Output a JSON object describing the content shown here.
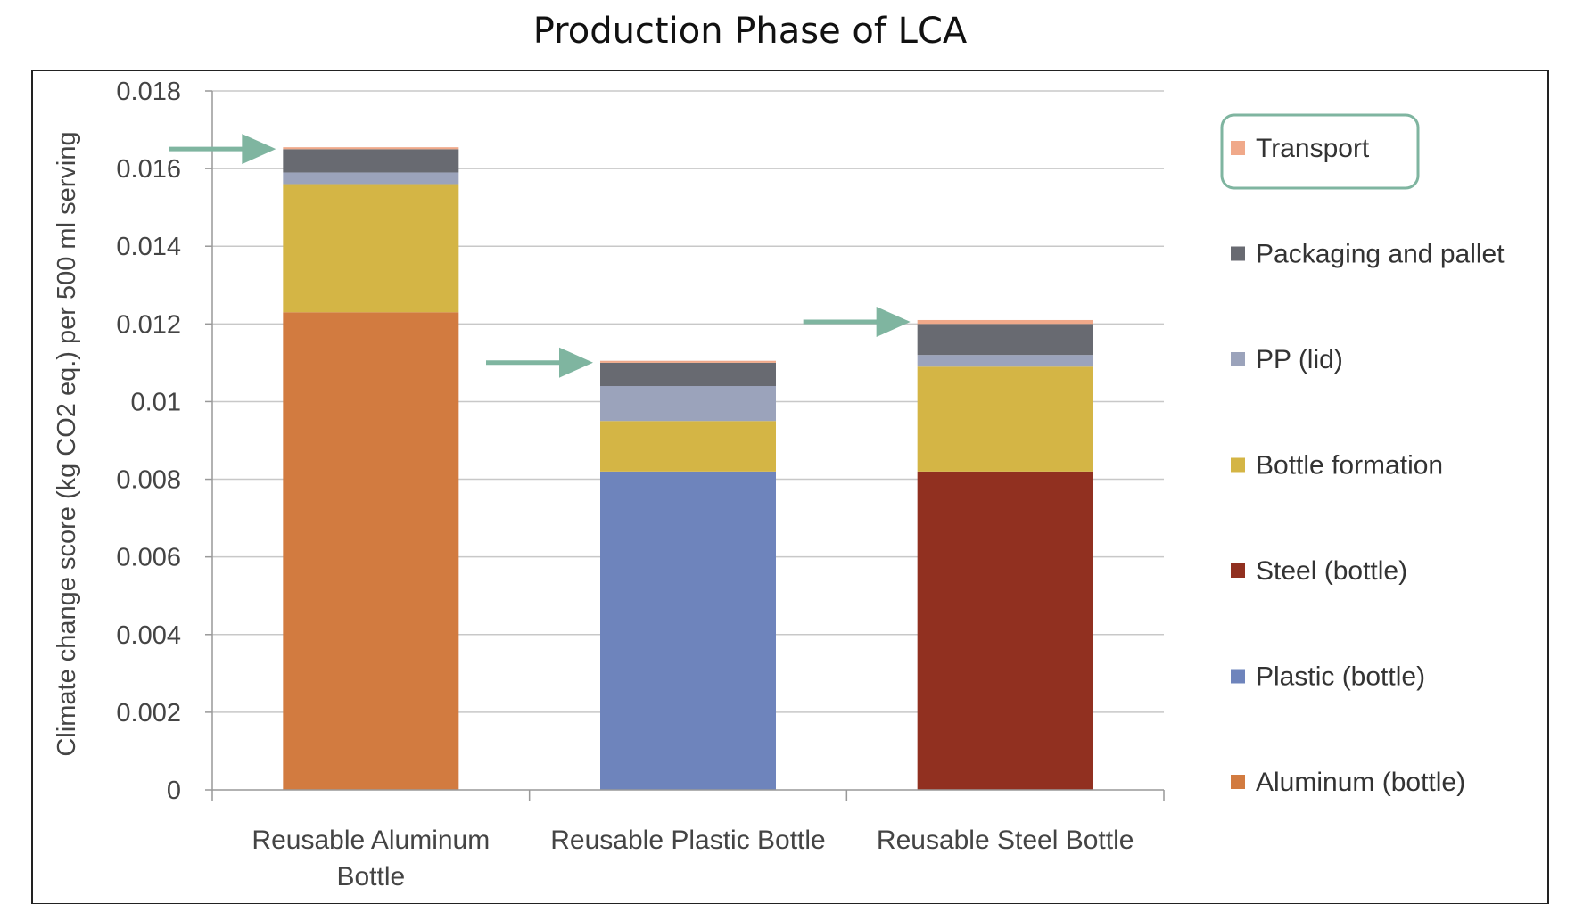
{
  "chart_data": {
    "type": "bar",
    "stacked": true,
    "title": "Production Phase of LCA",
    "xlabel": "",
    "ylabel": "Climate change score (kg CO2 eq.) per 500 ml serving",
    "ylim": [
      0,
      0.018
    ],
    "yticks": [
      "0",
      "0.002",
      "0.004",
      "0.006",
      "0.008",
      "0.01",
      "0.012",
      "0.014",
      "0.016",
      "0.018"
    ],
    "grid": true,
    "legend_position": "right",
    "categories": [
      [
        "Reusable Aluminum",
        "Bottle"
      ],
      [
        "Reusable Plastic Bottle"
      ],
      [
        "Reusable Steel Bottle"
      ]
    ],
    "series": [
      {
        "name": "Aluminum (bottle)",
        "color": "#D27B40",
        "values": [
          0.0123,
          0,
          0
        ]
      },
      {
        "name": "Plastic (bottle)",
        "color": "#6E84BC",
        "values": [
          0,
          0.0082,
          0
        ]
      },
      {
        "name": "Steel (bottle)",
        "color": "#913020",
        "values": [
          0,
          0,
          0.0082
        ]
      },
      {
        "name": "Bottle formation",
        "color": "#D4B545",
        "values": [
          0.0033,
          0.0013,
          0.0027
        ]
      },
      {
        "name": "PP (lid)",
        "color": "#9BA3BB",
        "values": [
          0.0003,
          0.0009,
          0.0003
        ]
      },
      {
        "name": "Packaging and pallet",
        "color": "#686A71",
        "values": [
          0.0006,
          0.0006,
          0.0008
        ]
      },
      {
        "name": "Transport",
        "color": "#F0A98A",
        "values": [
          5e-05,
          5e-05,
          0.0001
        ]
      }
    ],
    "legend_order": [
      "Transport",
      "Packaging and pallet",
      "PP (lid)",
      "Bottle formation",
      "Steel (bottle)",
      "Plastic (bottle)",
      "Aluminum (bottle)"
    ],
    "annotations": {
      "highlighted_legend_entry": "Transport",
      "highlight_color": "#7FB5A0",
      "arrows_point_to": "Transport segment at top of each bar"
    }
  }
}
